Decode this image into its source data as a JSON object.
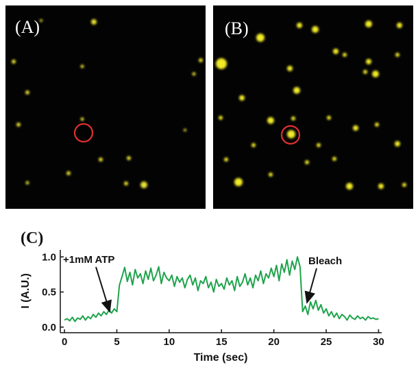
{
  "panel_labels": [
    "(A)",
    "(B)",
    "(C)"
  ],
  "chart_data": {
    "type": "line",
    "x": [
      0,
      0.25,
      0.5,
      0.75,
      1,
      1.25,
      1.5,
      1.75,
      2,
      2.25,
      2.5,
      2.75,
      3,
      3.25,
      3.5,
      3.75,
      4,
      4.25,
      4.5,
      4.75,
      5,
      5.25,
      5.5,
      5.75,
      6,
      6.25,
      6.5,
      6.75,
      7,
      7.25,
      7.5,
      7.75,
      8,
      8.25,
      8.5,
      8.75,
      9,
      9.25,
      9.5,
      9.75,
      10,
      10.25,
      10.5,
      10.75,
      11,
      11.25,
      11.5,
      11.75,
      12,
      12.25,
      12.5,
      12.75,
      13,
      13.25,
      13.5,
      13.75,
      14,
      14.25,
      14.5,
      14.75,
      15,
      15.25,
      15.5,
      15.75,
      16,
      16.25,
      16.5,
      16.75,
      17,
      17.25,
      17.5,
      17.75,
      18,
      18.25,
      18.5,
      18.75,
      19,
      19.25,
      19.5,
      19.75,
      20,
      20.25,
      20.5,
      20.75,
      21,
      21.25,
      21.5,
      21.75,
      22,
      22.25,
      22.5,
      22.75,
      23,
      23.25,
      23.5,
      23.75,
      24,
      24.25,
      24.5,
      24.75,
      25,
      25.25,
      25.5,
      25.75,
      26,
      26.25,
      26.5,
      26.75,
      27,
      27.25,
      27.5,
      27.75,
      28,
      28.25,
      28.5,
      28.75,
      29,
      29.25,
      29.5,
      29.75,
      30
    ],
    "values": [
      0.1,
      0.12,
      0.09,
      0.14,
      0.08,
      0.13,
      0.11,
      0.16,
      0.1,
      0.15,
      0.12,
      0.18,
      0.14,
      0.2,
      0.16,
      0.22,
      0.18,
      0.24,
      0.2,
      0.26,
      0.22,
      0.6,
      0.72,
      0.85,
      0.65,
      0.78,
      0.6,
      0.82,
      0.7,
      0.76,
      0.62,
      0.8,
      0.68,
      0.84,
      0.66,
      0.74,
      0.86,
      0.62,
      0.78,
      0.7,
      0.66,
      0.74,
      0.58,
      0.72,
      0.64,
      0.7,
      0.56,
      0.68,
      0.74,
      0.6,
      0.7,
      0.52,
      0.66,
      0.62,
      0.72,
      0.56,
      0.64,
      0.5,
      0.68,
      0.58,
      0.62,
      0.54,
      0.7,
      0.6,
      0.66,
      0.52,
      0.72,
      0.58,
      0.64,
      0.76,
      0.6,
      0.7,
      0.56,
      0.74,
      0.66,
      0.8,
      0.62,
      0.76,
      0.7,
      0.84,
      0.72,
      0.88,
      0.66,
      0.9,
      0.78,
      0.96,
      0.74,
      0.94,
      0.82,
      1.0,
      0.86,
      0.22,
      0.3,
      0.18,
      0.36,
      0.26,
      0.38,
      0.24,
      0.32,
      0.2,
      0.26,
      0.16,
      0.22,
      0.14,
      0.2,
      0.12,
      0.18,
      0.15,
      0.1,
      0.17,
      0.13,
      0.11,
      0.16,
      0.12,
      0.14,
      0.1,
      0.15,
      0.12,
      0.13,
      0.11,
      0.12
    ],
    "color": "#1ea34b",
    "xlim": [
      -0.4,
      30.3
    ],
    "ylim": [
      -0.08,
      1.1
    ],
    "xticks": [
      0,
      5,
      10,
      15,
      20,
      25,
      30
    ],
    "yticks": [
      {
        "value": 0,
        "label": "0.0"
      },
      {
        "value": 0.5,
        "label": "0.5"
      },
      {
        "value": 1,
        "label": "1.0"
      }
    ],
    "xlabel": "Time (sec)",
    "ylabel": "I (A.U.)",
    "annotations": [
      "+1mM ATP",
      "Bleach"
    ]
  }
}
